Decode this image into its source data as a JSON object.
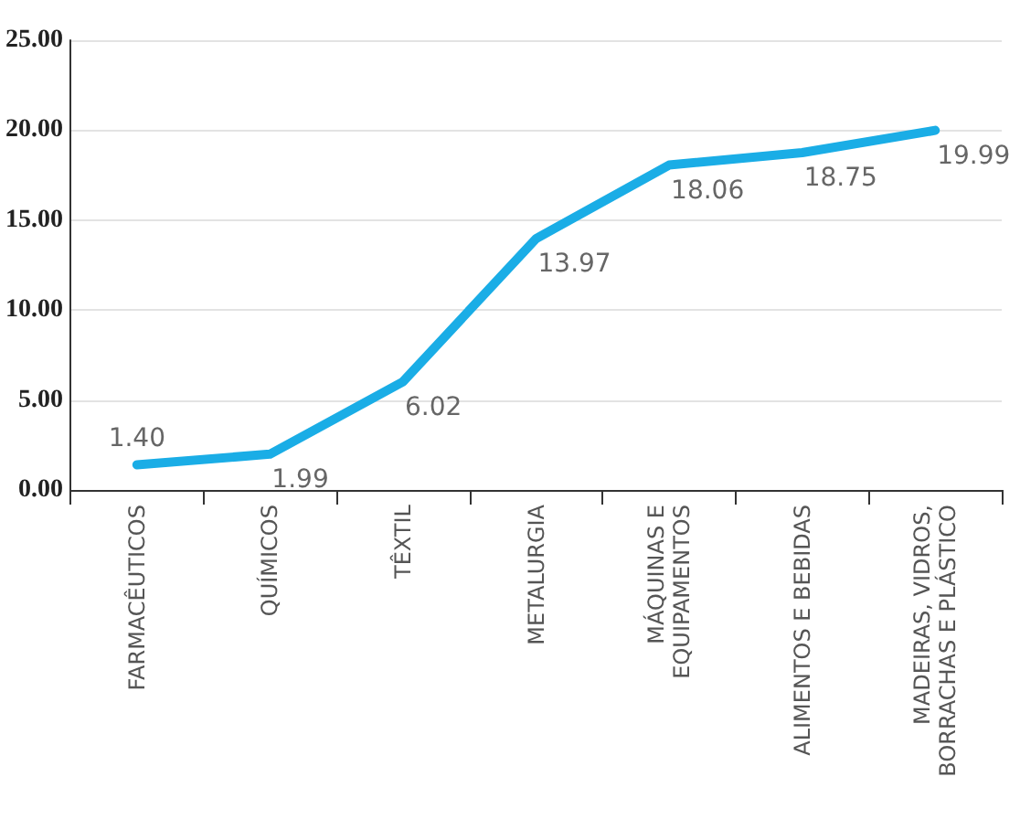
{
  "chart_data": {
    "type": "line",
    "categories": [
      "FARMACÊUTICOS",
      "QUÍMICOS",
      "TÊXTIL",
      "METALURGIA",
      "MÁQUINAS E\nEQUIPAMENTOS",
      "ALIMENTOS E BEBIDAS",
      "MADEIRAS, VIDROS,\nBORRACHAS E PLÁSTICO"
    ],
    "series": [
      {
        "color": "#1aade6",
        "values": [
          1.4,
          1.99,
          6.02,
          13.97,
          18.06,
          18.75,
          19.99
        ],
        "value_labels": [
          "1.40",
          "1.99",
          "6.02",
          "13.97",
          "18.06",
          "18.75",
          "19.99"
        ]
      }
    ],
    "ylim": [
      0,
      25
    ],
    "yticks": [
      {
        "value": 0,
        "label": "0.00"
      },
      {
        "value": 5,
        "label": "5.00"
      },
      {
        "value": 10,
        "label": "10.00"
      },
      {
        "value": 15,
        "label": "15.00"
      },
      {
        "value": 20,
        "label": "20.00"
      },
      {
        "value": 25,
        "label": "25.00"
      }
    ],
    "grid": "y",
    "marker": "none",
    "line_style": "solid"
  }
}
